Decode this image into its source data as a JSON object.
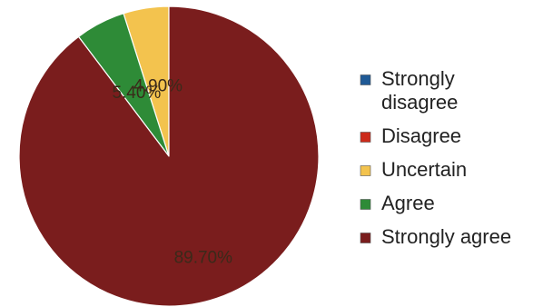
{
  "chart_data": {
    "type": "pie",
    "categories": [
      "Strongly disagree",
      "Disagree",
      "Uncertain",
      "Agree",
      "Strongly agree"
    ],
    "values": [
      0,
      0,
      4.9,
      5.4,
      89.7
    ],
    "data_labels": [
      "",
      "",
      "4.90%",
      "5.40%",
      "89.70%"
    ],
    "legend": {
      "placement": "right",
      "entries": [
        {
          "lines": [
            "Strongly",
            "disagree"
          ]
        },
        {
          "lines": [
            "Disagree"
          ]
        },
        {
          "lines": [
            "Uncertain"
          ]
        },
        {
          "lines": [
            "Agree"
          ]
        },
        {
          "lines": [
            "Strongly agree"
          ]
        }
      ]
    },
    "colors": [
      "#1f5a96",
      "#cc2a1a",
      "#f3c34e",
      "#2e8b37",
      "#7a1d1d"
    ],
    "start": "12 o'clock",
    "direction": "counterclockwise"
  }
}
